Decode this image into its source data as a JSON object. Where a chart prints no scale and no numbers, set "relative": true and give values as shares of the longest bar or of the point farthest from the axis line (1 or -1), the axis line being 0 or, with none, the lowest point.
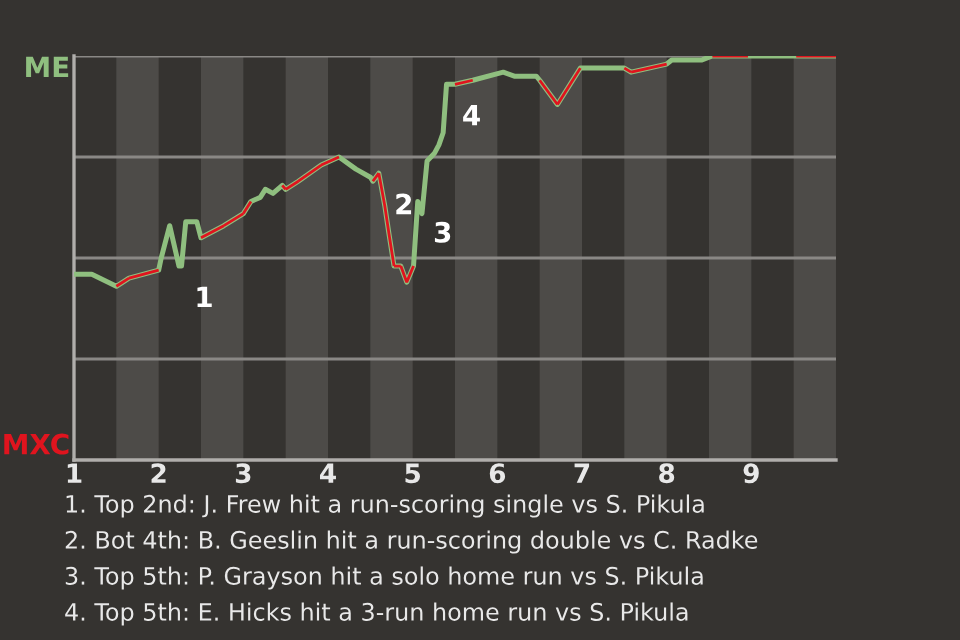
{
  "chart_data": {
    "type": "line",
    "relative": true,
    "x": [
      1.0,
      1.21,
      1.5,
      1.65,
      2.0,
      2.03,
      2.13,
      2.24,
      2.27,
      2.32,
      2.45,
      2.5,
      2.77,
      3.0,
      3.09,
      3.2,
      3.26,
      3.35,
      3.46,
      3.5,
      3.65,
      3.92,
      4.13,
      4.33,
      4.5,
      4.53,
      4.6,
      4.67,
      4.72,
      4.78,
      4.86,
      4.93,
      4.97,
      5.01,
      5.06,
      5.11,
      5.17,
      5.26,
      5.31,
      5.36,
      5.4,
      5.5,
      5.71,
      6.07,
      6.2,
      6.46,
      6.5,
      6.71,
      6.98,
      7.5,
      7.58,
      8.0,
      8.06,
      8.26,
      8.41,
      8.54,
      8.96,
      9.48,
      9.53,
      10.0
    ],
    "series": [
      {
        "color": "#8fbf7f",
        "values": [
          0.46,
          0.46,
          0.43,
          0.45,
          0.47,
          0.5,
          0.58,
          0.48,
          0.48,
          0.59,
          0.59,
          0.55,
          0.58,
          0.61,
          0.64,
          0.65,
          0.67,
          0.66,
          0.68,
          0.67,
          0.69,
          0.73,
          0.75,
          0.72,
          0.7,
          0.69,
          0.71,
          0.63,
          0.56,
          0.48,
          0.48,
          0.44,
          0.46,
          0.48,
          0.64,
          0.61,
          0.74,
          0.76,
          0.78,
          0.81,
          0.93,
          0.93,
          0.94,
          0.96,
          0.95,
          0.95,
          0.94,
          0.88,
          0.97,
          0.97,
          0.96,
          0.98,
          0.99,
          0.99,
          0.99,
          1.0,
          1.0,
          1.0,
          1.0,
          1.0
        ],
        "colors": [
          "#8fbf7f",
          "#8fbf7f",
          "#8fbf7f",
          "#e0141e",
          "#e0141e",
          "#8fbf7f",
          "#8fbf7f",
          "#8fbf7f",
          "#8fbf7f",
          "#8fbf7f",
          "#8fbf7f",
          "#8fbf7f",
          "#e0141e",
          "#e0141e",
          "#e0141e",
          "#8fbf7f",
          "#8fbf7f",
          "#8fbf7f",
          "#8fbf7f",
          "#e0141e",
          "#e0141e",
          "#e0141e",
          "#e0141e",
          "#8fbf7f",
          "#8fbf7f",
          "#8fbf7f",
          "#e0141e",
          "#e0141e",
          "#e0141e",
          "#e0141e",
          "#e0141e",
          "#e0141e",
          "#e0141e",
          "#e0141e",
          "#8fbf7f",
          "#8fbf7f",
          "#8fbf7f",
          "#8fbf7f",
          "#8fbf7f",
          "#8fbf7f",
          "#8fbf7f",
          "#8fbf7f",
          "#e0141e",
          "#8fbf7f",
          "#8fbf7f",
          "#8fbf7f",
          "#8fbf7f",
          "#e0141e",
          "#e0141e",
          "#8fbf7f",
          "#e0141e",
          "#e0141e",
          "#8fbf7f",
          "#8fbf7f",
          "#8fbf7f",
          "#8fbf7f",
          "#e0141e",
          "#8fbf7f",
          "#8fbf7f",
          "#e0141e"
        ]
      }
    ],
    "xlim": [
      1,
      10
    ],
    "xticks": [
      1,
      2,
      3,
      4,
      5,
      6,
      7,
      8,
      9
    ],
    "ref_lines": [
      {
        "axis": "y",
        "value": 0.25,
        "color": "#8a8885"
      },
      {
        "axis": "y",
        "value": 0.5,
        "color": "#8a8885"
      },
      {
        "axis": "y",
        "value": 0.75,
        "color": "#8a8885"
      },
      {
        "axis": "y",
        "value": 1.0,
        "color": "#8a8885"
      }
    ],
    "bands": [
      {
        "axis": "x",
        "from": 1.5,
        "to": 2,
        "color": "#4d4b48"
      },
      {
        "axis": "x",
        "from": 2.5,
        "to": 3,
        "color": "#4d4b48"
      },
      {
        "axis": "x",
        "from": 3.5,
        "to": 4,
        "color": "#4d4b48"
      },
      {
        "axis": "x",
        "from": 4.5,
        "to": 5,
        "color": "#4d4b48"
      },
      {
        "axis": "x",
        "from": 5.5,
        "to": 6,
        "color": "#4d4b48"
      },
      {
        "axis": "x",
        "from": 6.5,
        "to": 7,
        "color": "#4d4b48"
      },
      {
        "axis": "x",
        "from": 7.5,
        "to": 8,
        "color": "#4d4b48"
      },
      {
        "axis": "x",
        "from": 8.5,
        "to": 9,
        "color": "#4d4b48"
      },
      {
        "axis": "x",
        "from": 9.5,
        "to": 10,
        "color": "#4d4b48"
      }
    ],
    "annotations": [
      "ME",
      "MXC",
      {
        "text": "1",
        "x": 2.24,
        "y": 0.48
      },
      {
        "text": "2",
        "x": 4.6,
        "y": 0.71
      },
      {
        "text": "3",
        "x": 5.06,
        "y": 0.64
      },
      {
        "text": "4",
        "x": 5.4,
        "y": 0.93
      },
      "1. Top 2nd: J. Frew hit a run-scoring single vs S. Pikula",
      "2. Bot 4th: B. Geeslin hit a run-scoring double vs C. Radke",
      "3. Top 5th: P. Grayson hit a solo home run vs S. Pikula",
      "4. Top 5th: E. Hicks hit a 3-run home run vs S. Pikula"
    ]
  }
}
